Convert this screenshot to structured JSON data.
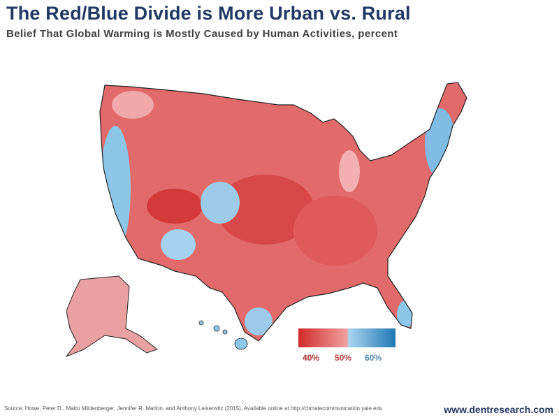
{
  "title": "The Red/Blue Divide is More Urban vs. Rural",
  "subtitle": "Belief That Global Warming is Mostly Caused by Human Activities, percent",
  "legend": {
    "labels": [
      "40%",
      "50%",
      "60%"
    ],
    "colors": {
      "low": "#d42a2a",
      "mid_red": "#f0a0a0",
      "mid_blue": "#a9d4ef",
      "high": "#1f78b4"
    },
    "label_colors": [
      "#b03030",
      "#c04040",
      "#4f86b0"
    ]
  },
  "source": "Source: Howe, Peter D., Matto Mildenberger, Jennifer R. Marlon, and Anthony Leiserwitz (2015), Available online at http://climatecommunication.yale.edu",
  "site": "www.dentresearch.com"
}
